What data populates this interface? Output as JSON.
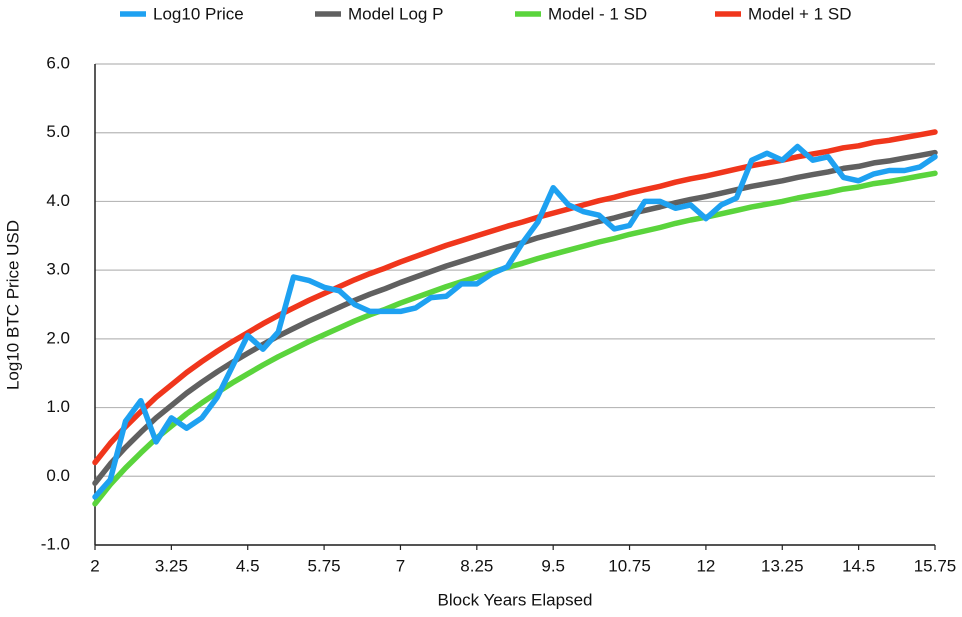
{
  "chart_data": {
    "type": "line",
    "x_label": "Block Years Elapsed",
    "y_label": "Log10 BTC Price USD",
    "x": [
      2,
      2.25,
      2.5,
      2.75,
      3,
      3.25,
      3.5,
      3.75,
      4,
      4.25,
      4.5,
      4.75,
      5,
      5.25,
      5.5,
      5.75,
      6,
      6.25,
      6.5,
      6.75,
      7,
      7.25,
      7.5,
      7.75,
      8,
      8.25,
      8.5,
      8.75,
      9,
      9.25,
      9.5,
      9.75,
      10,
      10.25,
      10.5,
      10.75,
      11,
      11.25,
      11.5,
      11.75,
      12,
      12.25,
      12.5,
      12.75,
      13,
      13.25,
      13.5,
      13.75,
      14,
      14.25,
      14.5,
      14.75,
      15,
      15.25,
      15.5,
      15.75
    ],
    "series": [
      {
        "name": "Log10 Price",
        "color": "#1ea1f1",
        "values": [
          -0.3,
          -0.05,
          0.8,
          1.1,
          0.5,
          0.85,
          0.7,
          0.85,
          1.15,
          1.6,
          2.05,
          1.85,
          2.1,
          2.9,
          2.85,
          2.75,
          2.7,
          2.5,
          2.4,
          2.4,
          2.4,
          2.45,
          2.6,
          2.62,
          2.8,
          2.8,
          2.95,
          3.05,
          3.4,
          3.7,
          4.2,
          3.95,
          3.85,
          3.8,
          3.6,
          3.65,
          4.0,
          4.0,
          3.9,
          3.95,
          3.75,
          3.95,
          4.05,
          4.6,
          4.7,
          4.6,
          4.8,
          4.6,
          4.65,
          4.35,
          4.3,
          4.4,
          4.45,
          4.45,
          4.5,
          4.65
        ]
      },
      {
        "name": "Model Log P",
        "color": "#606060",
        "values": [
          -0.1,
          0.18,
          0.42,
          0.64,
          0.85,
          1.03,
          1.21,
          1.37,
          1.52,
          1.66,
          1.79,
          1.92,
          2.04,
          2.15,
          2.26,
          2.36,
          2.46,
          2.56,
          2.65,
          2.73,
          2.82,
          2.9,
          2.98,
          3.06,
          3.13,
          3.2,
          3.27,
          3.34,
          3.4,
          3.47,
          3.53,
          3.59,
          3.65,
          3.71,
          3.76,
          3.82,
          3.87,
          3.92,
          3.98,
          4.03,
          4.07,
          4.12,
          4.17,
          4.22,
          4.26,
          4.3,
          4.35,
          4.39,
          4.43,
          4.48,
          4.51,
          4.56,
          4.59,
          4.63,
          4.67,
          4.71
        ]
      },
      {
        "name": "Model - 1 SD",
        "color": "#5ad43c",
        "values": [
          -0.4,
          -0.12,
          0.12,
          0.34,
          0.55,
          0.73,
          0.91,
          1.07,
          1.22,
          1.36,
          1.49,
          1.62,
          1.74,
          1.85,
          1.96,
          2.06,
          2.16,
          2.26,
          2.35,
          2.43,
          2.52,
          2.6,
          2.68,
          2.76,
          2.83,
          2.9,
          2.97,
          3.04,
          3.1,
          3.17,
          3.23,
          3.29,
          3.35,
          3.41,
          3.46,
          3.52,
          3.57,
          3.62,
          3.68,
          3.73,
          3.77,
          3.82,
          3.87,
          3.92,
          3.96,
          4.0,
          4.05,
          4.09,
          4.13,
          4.18,
          4.21,
          4.26,
          4.29,
          4.33,
          4.37,
          4.41
        ]
      },
      {
        "name": "Model + 1 SD",
        "color": "#f0361c",
        "values": [
          0.2,
          0.48,
          0.72,
          0.94,
          1.15,
          1.33,
          1.51,
          1.67,
          1.82,
          1.96,
          2.09,
          2.22,
          2.34,
          2.45,
          2.56,
          2.66,
          2.76,
          2.86,
          2.95,
          3.03,
          3.12,
          3.2,
          3.28,
          3.36,
          3.43,
          3.5,
          3.57,
          3.64,
          3.7,
          3.77,
          3.83,
          3.89,
          3.95,
          4.01,
          4.06,
          4.12,
          4.17,
          4.22,
          4.28,
          4.33,
          4.37,
          4.42,
          4.47,
          4.52,
          4.56,
          4.6,
          4.65,
          4.69,
          4.73,
          4.78,
          4.81,
          4.86,
          4.89,
          4.93,
          4.97,
          5.01
        ]
      }
    ],
    "xlim": [
      2,
      15.75
    ],
    "xticks": [
      2,
      3.25,
      4.5,
      5.75,
      7,
      8.25,
      9.5,
      10.75,
      12,
      13.25,
      14.5,
      15.75
    ],
    "ylim": [
      -1,
      6
    ],
    "yticks": [
      {
        "value": -1,
        "label": "-1.0"
      },
      {
        "value": 0,
        "label": "0.0"
      },
      {
        "value": 1,
        "label": "1.0"
      },
      {
        "value": 2,
        "label": "2.0"
      },
      {
        "value": 3,
        "label": "3.0"
      },
      {
        "value": 4,
        "label": "4.0"
      },
      {
        "value": 5,
        "label": "5.0"
      },
      {
        "value": 6,
        "label": "6.0"
      }
    ],
    "grid": true,
    "legend": "top"
  }
}
